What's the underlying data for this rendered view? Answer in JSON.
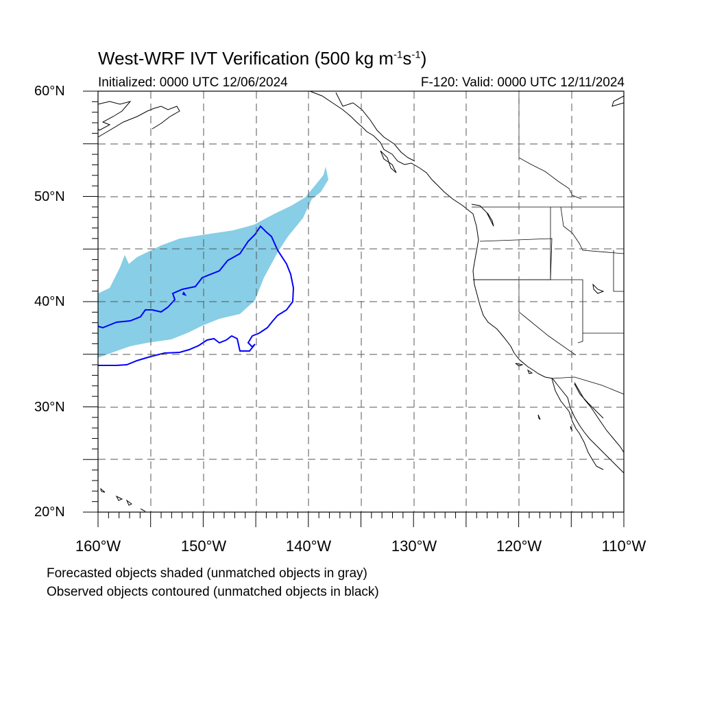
{
  "map": {
    "title_main": "West-WRF IVT Verification (500 kg m",
    "title_exp1": "-1",
    "title_mid": "s",
    "title_exp2": "-1",
    "title_end": ")",
    "initialized": "Initialized: 0000 UTC 12/06/2024",
    "valid": "F-120: Valid: 0000 UTC 12/11/2024",
    "lat_labels": [
      "60°N",
      "50°N",
      "40°N",
      "30°N",
      "20°N"
    ],
    "lon_labels": [
      "160°W",
      "150°W",
      "140°W",
      "130°W",
      "120°W",
      "110°W"
    ],
    "notes": [
      "Forecasted objects shaded (unmatched objects in gray)",
      "Observed objects contoured (unmatched objects in black)"
    ],
    "extent": {
      "lon_min": -160,
      "lon_max": -110,
      "lat_min": 20,
      "lat_max": 60
    },
    "colors": {
      "forecast_fill": "#87CEE6",
      "observed_contour": "#0000FF",
      "coast": "#000000",
      "grid": "#555555"
    }
  }
}
